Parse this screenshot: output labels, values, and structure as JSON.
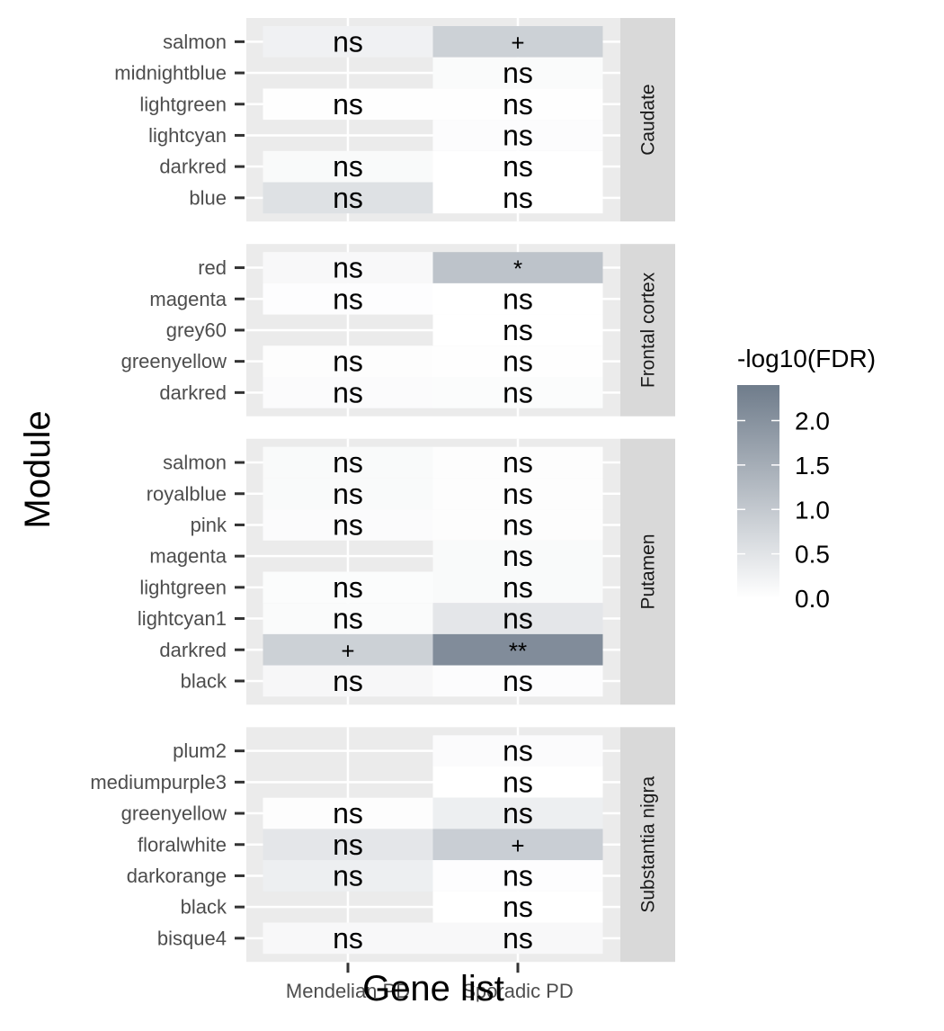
{
  "chart_data": {
    "type": "heatmap",
    "xlabel": "Gene list",
    "ylabel": "Module",
    "x_categories": [
      "Mendelian PD",
      "Sporadic PD"
    ],
    "legend": {
      "title": "-log10(FDR)",
      "ticks": [
        0.0,
        0.5,
        1.0,
        1.5,
        2.0
      ],
      "tick_labels": [
        "0.0",
        "0.5",
        "1.0",
        "1.5",
        "2.0"
      ],
      "range": [
        0,
        2.4
      ],
      "low_color": "#ffffff",
      "high_color": "#6f7c8b",
      "placement": "right"
    },
    "panels": [
      {
        "region": "Caudate",
        "modules": [
          "salmon",
          "midnightblue",
          "lightgreen",
          "lightcyan",
          "darkred",
          "blue"
        ],
        "cells": [
          [
            {
              "value": 0.25,
              "label": "ns"
            },
            {
              "value": 0.85,
              "label": "+"
            }
          ],
          [
            null,
            {
              "value": 0.08,
              "label": "ns"
            }
          ],
          [
            {
              "value": 0.02,
              "label": "ns"
            },
            {
              "value": 0.02,
              "label": "ns"
            }
          ],
          [
            null,
            {
              "value": 0.05,
              "label": "ns"
            }
          ],
          [
            {
              "value": 0.1,
              "label": "ns"
            },
            {
              "value": 0.0,
              "label": "ns"
            }
          ],
          [
            {
              "value": 0.55,
              "label": "ns"
            },
            {
              "value": 0.0,
              "label": "ns"
            }
          ]
        ]
      },
      {
        "region": "Frontal cortex",
        "modules": [
          "red",
          "magenta",
          "grey60",
          "greenyellow",
          "darkred"
        ],
        "cells": [
          [
            {
              "value": 0.12,
              "label": "ns"
            },
            {
              "value": 1.1,
              "label": "*"
            }
          ],
          [
            {
              "value": 0.03,
              "label": "ns"
            },
            {
              "value": 0.0,
              "label": "ns"
            }
          ],
          [
            null,
            {
              "value": 0.0,
              "label": "ns"
            }
          ],
          [
            {
              "value": 0.04,
              "label": "ns"
            },
            {
              "value": 0.02,
              "label": "ns"
            }
          ],
          [
            {
              "value": 0.07,
              "label": "ns"
            },
            {
              "value": 0.06,
              "label": "ns"
            }
          ]
        ]
      },
      {
        "region": "Putamen",
        "modules": [
          "salmon",
          "royalblue",
          "pink",
          "magenta",
          "lightgreen",
          "lightcyan1",
          "darkred",
          "black"
        ],
        "cells": [
          [
            {
              "value": 0.1,
              "label": "ns"
            },
            {
              "value": 0.04,
              "label": "ns"
            }
          ],
          [
            {
              "value": 0.1,
              "label": "ns"
            },
            {
              "value": 0.04,
              "label": "ns"
            }
          ],
          [
            {
              "value": 0.07,
              "label": "ns"
            },
            {
              "value": 0.04,
              "label": "ns"
            }
          ],
          [
            null,
            {
              "value": 0.1,
              "label": "ns"
            }
          ],
          [
            {
              "value": 0.06,
              "label": "ns"
            },
            {
              "value": 0.1,
              "label": "ns"
            }
          ],
          [
            {
              "value": 0.08,
              "label": "ns"
            },
            {
              "value": 0.45,
              "label": "ns"
            }
          ],
          [
            {
              "value": 0.85,
              "label": "+"
            },
            {
              "value": 2.1,
              "label": "**"
            }
          ],
          [
            {
              "value": 0.14,
              "label": "ns"
            },
            {
              "value": 0.05,
              "label": "ns"
            }
          ]
        ]
      },
      {
        "region": "Substantia nigra",
        "modules": [
          "plum2",
          "mediumpurple3",
          "greenyellow",
          "floralwhite",
          "darkorange",
          "black",
          "bisque4"
        ],
        "cells": [
          [
            null,
            {
              "value": 0.07,
              "label": "ns"
            }
          ],
          [
            null,
            {
              "value": 0.0,
              "label": "ns"
            }
          ],
          [
            {
              "value": 0.04,
              "label": "ns"
            },
            {
              "value": 0.3,
              "label": "ns"
            }
          ],
          [
            {
              "value": 0.45,
              "label": "ns"
            },
            {
              "value": 0.9,
              "label": "+"
            }
          ],
          [
            {
              "value": 0.3,
              "label": "ns"
            },
            {
              "value": 0.03,
              "label": "ns"
            }
          ],
          [
            null,
            {
              "value": 0.0,
              "label": "ns"
            }
          ],
          [
            {
              "value": 0.12,
              "label": "ns"
            },
            {
              "value": 0.12,
              "label": "ns"
            }
          ]
        ]
      }
    ]
  }
}
